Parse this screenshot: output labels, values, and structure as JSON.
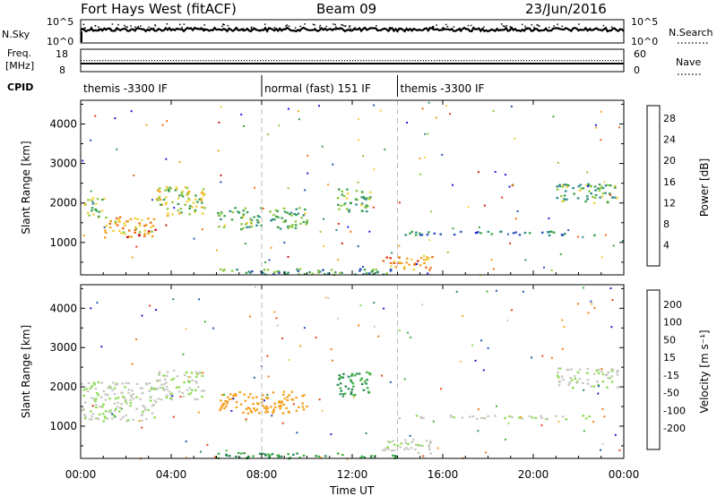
{
  "header": {
    "radar": "Fort Hays West (fitACF)",
    "beam": "Beam 09",
    "date": "23/Jun/2016"
  },
  "sky_panel": {
    "left_label": "N.Sky",
    "right_label": "N.Search",
    "left_ticks": [
      "10^5",
      "10^0"
    ],
    "right_ticks": [
      "10^5",
      "10^0"
    ]
  },
  "freq_panel": {
    "left_label_1": "Freq.",
    "left_label_2": "[MHz]",
    "right_label": "Nave",
    "left_ticks": [
      "18",
      "8"
    ],
    "right_ticks": [
      "60",
      "0"
    ]
  },
  "cpid": {
    "label": "CPID",
    "segments": [
      {
        "start_hour": 0,
        "end_hour": 8,
        "name": "themis -3300 IF"
      },
      {
        "start_hour": 8,
        "end_hour": 14,
        "name": "normal (fast) 151 IF"
      },
      {
        "start_hour": 14,
        "end_hour": 24,
        "name": "themis -3300 IF"
      }
    ]
  },
  "chart_data": [
    {
      "type": "heatmap",
      "panel": "power",
      "ylabel": "Slant Range [km]",
      "xlabel": "",
      "ylim": [
        180,
        4600
      ],
      "xlim": [
        0,
        24
      ],
      "yticks": [
        1000,
        2000,
        3000,
        4000
      ],
      "colorbar": {
        "label": "Power [dB]",
        "ticks": [
          "4",
          "8",
          "12",
          "16",
          "20",
          "24",
          "28"
        ],
        "colors": [
          "#1c1cdc",
          "#2a52b8",
          "#2e8a8a",
          "#3aa04a",
          "#8cc83c",
          "#f0d23c",
          "#f5a01e",
          "#f06e14",
          "#e03c14",
          "#c81414"
        ]
      },
      "regions": [
        {
          "t0": 0.0,
          "t1": 1.0,
          "r0": 1650,
          "r1": 2150,
          "value": 14
        },
        {
          "t0": 1.0,
          "t1": 3.3,
          "r0": 1150,
          "r1": 1700,
          "value": 20
        },
        {
          "t0": 2.0,
          "t1": 3.3,
          "r0": 1150,
          "r1": 1350,
          "value": 28
        },
        {
          "t0": 3.3,
          "t1": 5.5,
          "r0": 1700,
          "r1": 2450,
          "value": 16
        },
        {
          "t0": 6.0,
          "t1": 10.0,
          "r0": 1350,
          "r1": 1900,
          "value": 12
        },
        {
          "t0": 11.3,
          "t1": 12.8,
          "r0": 1800,
          "r1": 2400,
          "value": 12
        },
        {
          "t0": 13.3,
          "t1": 15.5,
          "r0": 320,
          "r1": 700,
          "value": 22
        },
        {
          "t0": 14.0,
          "t1": 22.8,
          "r0": 1200,
          "r1": 1300,
          "value": 8
        },
        {
          "t0": 21.0,
          "t1": 23.7,
          "r0": 2000,
          "r1": 2500,
          "value": 12
        },
        {
          "t0": 6.0,
          "t1": 14.0,
          "r0": 200,
          "r1": 350,
          "value": 10
        }
      ]
    },
    {
      "type": "heatmap",
      "panel": "velocity",
      "ylabel": "Slant Range [km]",
      "xlabel": "Time UT",
      "ylim": [
        180,
        4600
      ],
      "xlim": [
        0,
        24
      ],
      "yticks": [
        1000,
        2000,
        3000,
        4000
      ],
      "xticks": [
        "00:00",
        "04:00",
        "08:00",
        "12:00",
        "16:00",
        "20:00",
        "00:00"
      ],
      "colorbar": {
        "label": "Velocity [m s⁻¹]",
        "ticks": [
          "200",
          "100",
          "50",
          "15",
          "-15",
          "-50",
          "-100",
          "-200"
        ],
        "colors": [
          "#1e1ec8",
          "#1e5ab4",
          "#288c50",
          "#3cb43c",
          "#8cdc50",
          "#c8c8c0",
          "#f0c864",
          "#f5a01e",
          "#f07814",
          "#e64614",
          "#dc1414"
        ]
      },
      "regions": [
        {
          "t0": 0.0,
          "t1": 3.3,
          "r0": 1150,
          "r1": 2150,
          "value": 0
        },
        {
          "t0": 3.3,
          "t1": 5.5,
          "r0": 1700,
          "r1": 2450,
          "value": 0
        },
        {
          "t0": 6.0,
          "t1": 10.0,
          "r0": 1350,
          "r1": 1900,
          "value": -60
        },
        {
          "t0": 11.3,
          "t1": 12.8,
          "r0": 1800,
          "r1": 2400,
          "value": 40
        },
        {
          "t0": 13.3,
          "t1": 15.5,
          "r0": 320,
          "r1": 700,
          "value": 0
        },
        {
          "t0": 14.0,
          "t1": 22.8,
          "r0": 1200,
          "r1": 1300,
          "value": 0
        },
        {
          "t0": 21.0,
          "t1": 23.7,
          "r0": 2000,
          "r1": 2500,
          "value": 0
        },
        {
          "t0": 6.0,
          "t1": 14.0,
          "r0": 200,
          "r1": 350,
          "value": 40
        }
      ]
    }
  ]
}
